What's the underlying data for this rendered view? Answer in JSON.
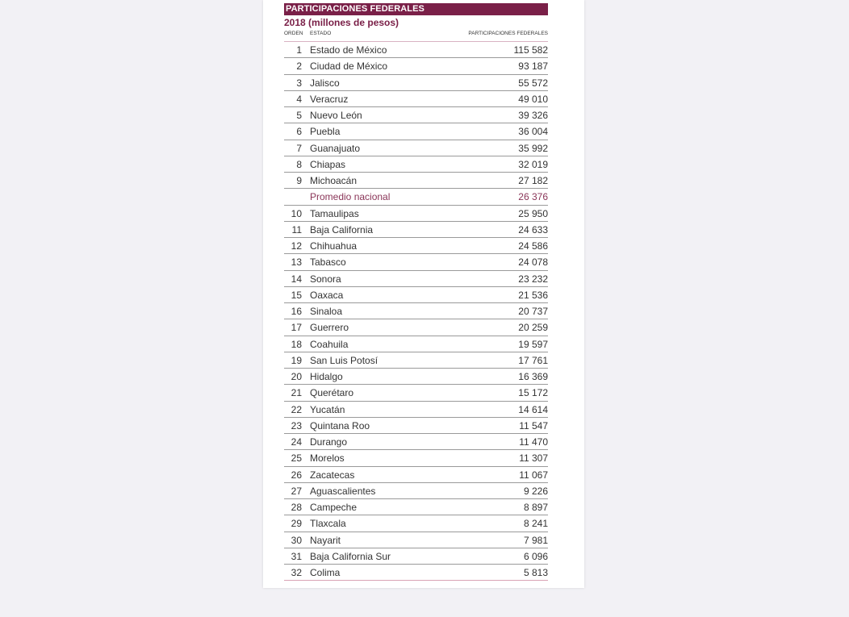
{
  "title": "PARTICIPACIONES FEDERALES",
  "subtitle": "2018 (millones de pesos)",
  "columns": {
    "orden": "ORDEN",
    "estado": "ESTADO",
    "valor": "PARTICIPACIONES FEDERALES"
  },
  "colors": {
    "accent": "#7a2048",
    "background": "#f2f1f5"
  },
  "rows": [
    {
      "orden": "1",
      "estado": "Estado de México",
      "valor": "115 582"
    },
    {
      "orden": "2",
      "estado": "Ciudad de México",
      "valor": "93 187"
    },
    {
      "orden": "3",
      "estado": "Jalisco",
      "valor": "55 572"
    },
    {
      "orden": "4",
      "estado": "Veracruz",
      "valor": "49 010"
    },
    {
      "orden": "5",
      "estado": "Nuevo León",
      "valor": "39 326"
    },
    {
      "orden": "6",
      "estado": "Puebla",
      "valor": "36 004"
    },
    {
      "orden": "7",
      "estado": "Guanajuato",
      "valor": "35 992"
    },
    {
      "orden": "8",
      "estado": "Chiapas",
      "valor": "32 019"
    },
    {
      "orden": "9",
      "estado": "Michoacán",
      "valor": "27 182"
    },
    {
      "orden": "",
      "estado": "Promedio nacional",
      "valor": "26 376",
      "highlight": true
    },
    {
      "orden": "10",
      "estado": "Tamaulipas",
      "valor": "25 950"
    },
    {
      "orden": "11",
      "estado": "Baja California",
      "valor": "24 633"
    },
    {
      "orden": "12",
      "estado": "Chihuahua",
      "valor": "24 586"
    },
    {
      "orden": "13",
      "estado": "Tabasco",
      "valor": "24 078"
    },
    {
      "orden": "14",
      "estado": "Sonora",
      "valor": "23 232"
    },
    {
      "orden": "15",
      "estado": "Oaxaca",
      "valor": "21 536"
    },
    {
      "orden": "16",
      "estado": "Sinaloa",
      "valor": "20 737"
    },
    {
      "orden": "17",
      "estado": "Guerrero",
      "valor": "20 259"
    },
    {
      "orden": "18",
      "estado": "Coahuila",
      "valor": "19 597"
    },
    {
      "orden": "19",
      "estado": "San Luis Potosí",
      "valor": "17 761"
    },
    {
      "orden": "20",
      "estado": "Hidalgo",
      "valor": "16 369"
    },
    {
      "orden": "21",
      "estado": "Querétaro",
      "valor": "15 172"
    },
    {
      "orden": "22",
      "estado": "Yucatán",
      "valor": "14 614"
    },
    {
      "orden": "23",
      "estado": "Quintana Roo",
      "valor": "11 547"
    },
    {
      "orden": "24",
      "estado": "Durango",
      "valor": "11 470"
    },
    {
      "orden": "25",
      "estado": "Morelos",
      "valor": "11 307"
    },
    {
      "orden": "26",
      "estado": "Zacatecas",
      "valor": "11 067"
    },
    {
      "orden": "27",
      "estado": "Aguascalientes",
      "valor": "9 226"
    },
    {
      "orden": "28",
      "estado": "Campeche",
      "valor": "8 897"
    },
    {
      "orden": "29",
      "estado": "Tlaxcala",
      "valor": "8 241"
    },
    {
      "orden": "30",
      "estado": "Nayarit",
      "valor": "7 981"
    },
    {
      "orden": "31",
      "estado": "Baja California Sur",
      "valor": "6 096"
    },
    {
      "orden": "32",
      "estado": "Colima",
      "valor": "5 813"
    }
  ]
}
